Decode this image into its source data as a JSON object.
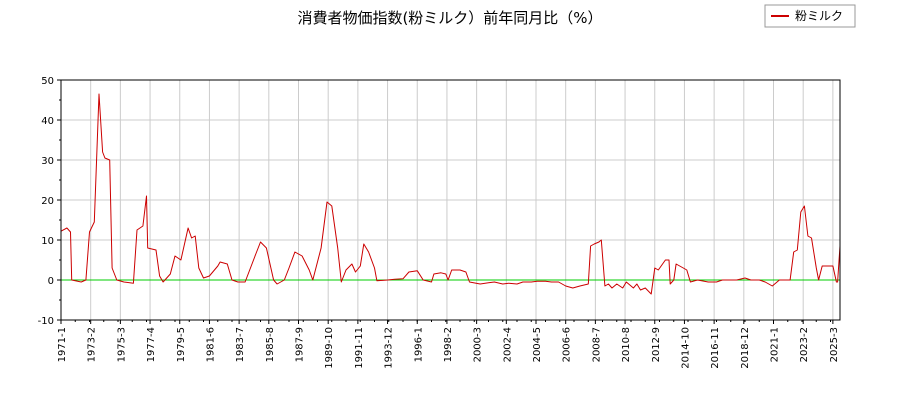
{
  "chart_data": {
    "type": "line",
    "title": "消費者物価指数(粉ミルク）前年同月比（%）",
    "xlabel": "",
    "ylabel": "",
    "ylim": [
      -10,
      50
    ],
    "yticks": [
      -10,
      0,
      10,
      20,
      30,
      40,
      50
    ],
    "xlim": [
      "1971-01",
      "2025-09"
    ],
    "xticks": [
      "1971-1",
      "1973-2",
      "1975-3",
      "1977-4",
      "1979-5",
      "1981-6",
      "1983-7",
      "1985-8",
      "1987-9",
      "1989-10",
      "1991-11",
      "1993-12",
      "1996-1",
      "1998-2",
      "2000-3",
      "2002-4",
      "2004-5",
      "2006-6",
      "2008-7",
      "2010-8",
      "2012-9",
      "2014-10",
      "2016-11",
      "2018-12",
      "2021-1",
      "2023-2",
      "2025-3"
    ],
    "grid": true,
    "legend": "top-right",
    "zero_line_color": "#00cc00",
    "series": [
      {
        "name": "粉ミルク",
        "color": "#cc0000",
        "points": [
          [
            "1971-01",
            12.2
          ],
          [
            "1971-06",
            13
          ],
          [
            "1971-09",
            12
          ],
          [
            "1971-10",
            0
          ],
          [
            "1972-06",
            -0.5
          ],
          [
            "1972-10",
            0
          ],
          [
            "1973-01",
            12
          ],
          [
            "1973-05",
            14.5
          ],
          [
            "1973-09",
            46.5
          ],
          [
            "1973-12",
            32
          ],
          [
            "1974-02",
            30.5
          ],
          [
            "1974-06",
            30
          ],
          [
            "1974-08",
            3
          ],
          [
            "1974-12",
            0
          ],
          [
            "1975-06",
            -0.5
          ],
          [
            "1976-02",
            -0.8
          ],
          [
            "1976-05",
            12.5
          ],
          [
            "1976-10",
            13.5
          ],
          [
            "1977-01",
            21
          ],
          [
            "1977-02",
            8
          ],
          [
            "1977-09",
            7.5
          ],
          [
            "1977-12",
            1
          ],
          [
            "1978-03",
            -0.5
          ],
          [
            "1978-09",
            1.5
          ],
          [
            "1979-01",
            6
          ],
          [
            "1979-06",
            5
          ],
          [
            "1979-12",
            13
          ],
          [
            "1980-03",
            10.5
          ],
          [
            "1980-06",
            11
          ],
          [
            "1980-09",
            3
          ],
          [
            "1981-01",
            0.5
          ],
          [
            "1981-06",
            1
          ],
          [
            "1982-01",
            3.5
          ],
          [
            "1982-03",
            4.5
          ],
          [
            "1982-09",
            4
          ],
          [
            "1983-01",
            0
          ],
          [
            "1983-06",
            -0.5
          ],
          [
            "1983-12",
            -0.5
          ],
          [
            "1984-09",
            6.5
          ],
          [
            "1985-01",
            9.5
          ],
          [
            "1985-06",
            8
          ],
          [
            "1985-12",
            0
          ],
          [
            "1986-03",
            -1
          ],
          [
            "1986-09",
            0
          ],
          [
            "1987-01",
            3
          ],
          [
            "1987-06",
            7
          ],
          [
            "1987-12",
            6
          ],
          [
            "1988-06",
            2.5
          ],
          [
            "1988-09",
            0
          ],
          [
            "1989-04",
            8
          ],
          [
            "1989-09",
            19.5
          ],
          [
            "1990-01",
            18.5
          ],
          [
            "1990-06",
            8
          ],
          [
            "1990-09",
            -0.5
          ],
          [
            "1991-01",
            2.5
          ],
          [
            "1991-06",
            4
          ],
          [
            "1991-09",
            2
          ],
          [
            "1992-01",
            3.5
          ],
          [
            "1992-04",
            9
          ],
          [
            "1992-08",
            7
          ],
          [
            "1993-01",
            3
          ],
          [
            "1993-03",
            -0.2
          ],
          [
            "1993-12",
            0
          ],
          [
            "1994-06",
            0.2
          ],
          [
            "1995-01",
            0.3
          ],
          [
            "1995-06",
            2
          ],
          [
            "1996-01",
            2.3
          ],
          [
            "1996-06",
            0
          ],
          [
            "1997-01",
            -0.5
          ],
          [
            "1997-03",
            1.5
          ],
          [
            "1997-09",
            1.8
          ],
          [
            "1998-01",
            1.5
          ],
          [
            "1998-03",
            0
          ],
          [
            "1998-06",
            2.5
          ],
          [
            "1999-01",
            2.5
          ],
          [
            "1999-06",
            2
          ],
          [
            "1999-09",
            -0.5
          ],
          [
            "2000-06",
            -1
          ],
          [
            "2001-01",
            -0.7
          ],
          [
            "2001-06",
            -0.5
          ],
          [
            "2002-01",
            -1
          ],
          [
            "2002-06",
            -0.8
          ],
          [
            "2003-01",
            -1
          ],
          [
            "2003-06",
            -0.5
          ],
          [
            "2004-01",
            -0.5
          ],
          [
            "2004-06",
            -0.3
          ],
          [
            "2005-01",
            -0.3
          ],
          [
            "2005-06",
            -0.5
          ],
          [
            "2005-12",
            -0.5
          ],
          [
            "2006-06",
            -1.5
          ],
          [
            "2006-12",
            -2
          ],
          [
            "2007-06",
            -1.5
          ],
          [
            "2008-01",
            -1
          ],
          [
            "2008-03",
            8.5
          ],
          [
            "2008-06",
            9
          ],
          [
            "2008-10",
            9.5
          ],
          [
            "2008-12",
            10
          ],
          [
            "2009-03",
            -1.5
          ],
          [
            "2009-06",
            -1
          ],
          [
            "2009-09",
            -2
          ],
          [
            "2010-01",
            -1
          ],
          [
            "2010-06",
            -2
          ],
          [
            "2010-09",
            -0.5
          ],
          [
            "2011-03",
            -2
          ],
          [
            "2011-06",
            -1
          ],
          [
            "2011-09",
            -2.5
          ],
          [
            "2012-01",
            -2
          ],
          [
            "2012-06",
            -3.5
          ],
          [
            "2012-09",
            3
          ],
          [
            "2012-12",
            2.5
          ],
          [
            "2013-06",
            5
          ],
          [
            "2013-09",
            5
          ],
          [
            "2013-10",
            -1
          ],
          [
            "2014-01",
            0
          ],
          [
            "2014-03",
            4
          ],
          [
            "2014-09",
            3
          ],
          [
            "2014-12",
            2.5
          ],
          [
            "2015-03",
            -0.5
          ],
          [
            "2015-09",
            0
          ],
          [
            "2016-06",
            -0.5
          ],
          [
            "2017-01",
            -0.5
          ],
          [
            "2017-06",
            0
          ],
          [
            "2018-01",
            0
          ],
          [
            "2018-06",
            0
          ],
          [
            "2019-01",
            0.5
          ],
          [
            "2019-06",
            0
          ],
          [
            "2020-01",
            0
          ],
          [
            "2020-06",
            -0.5
          ],
          [
            "2020-12",
            -1.5
          ],
          [
            "2021-06",
            0
          ],
          [
            "2021-12",
            0
          ],
          [
            "2022-03",
            0
          ],
          [
            "2022-06",
            7
          ],
          [
            "2022-09",
            7.5
          ],
          [
            "2022-12",
            17
          ],
          [
            "2023-03",
            18.5
          ],
          [
            "2023-06",
            11
          ],
          [
            "2023-09",
            10.5
          ],
          [
            "2024-01",
            3
          ],
          [
            "2024-03",
            0
          ],
          [
            "2024-06",
            3.5
          ],
          [
            "2024-12",
            3.5
          ],
          [
            "2025-03",
            3.5
          ],
          [
            "2025-06",
            -0.5
          ],
          [
            "2025-07",
            -0.5
          ],
          [
            "2025-09",
            8.5
          ]
        ]
      }
    ]
  }
}
